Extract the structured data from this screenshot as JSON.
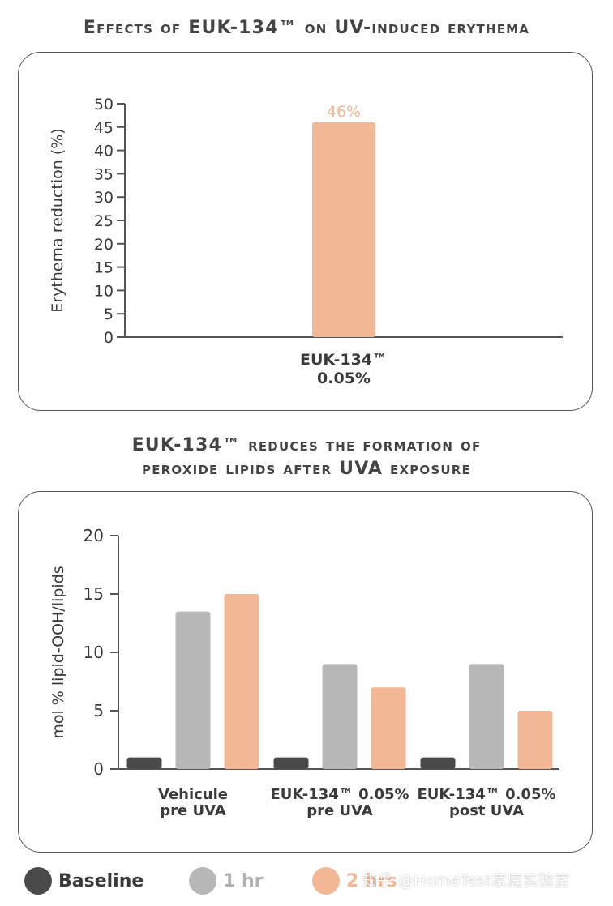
{
  "chart_data": [
    {
      "type": "bar",
      "title": "Effects of EUK-134™ on UV-induced erythema",
      "ylabel": "Erythema reduction (%)",
      "xlabel": "",
      "ylim": [
        0,
        50
      ],
      "yticks": [
        0,
        5,
        10,
        15,
        20,
        25,
        30,
        35,
        40,
        45,
        50
      ],
      "categories": [
        "EUK-134™\n0.05%"
      ],
      "category_lines": [
        [
          "EUK-134™",
          "0.05%"
        ]
      ],
      "series": [
        {
          "name": "2 hrs",
          "values": [
            46
          ]
        }
      ],
      "data_labels": [
        "46%"
      ],
      "grid": false,
      "color": "#F2B896"
    },
    {
      "type": "bar",
      "title": "EUK-134™ reduces the formation of peroxide lipids after UVA exposure",
      "title_lines": [
        "EUK-134™ reduces the formation of",
        "peroxide lipids after UVA exposure"
      ],
      "ylabel": "mol % lipid-OOH/lipids",
      "xlabel": "",
      "ylim": [
        0,
        20
      ],
      "yticks": [
        0,
        5,
        10,
        15,
        20
      ],
      "categories": [
        "Vehicule pre UVA",
        "EUK-134™ 0.05% pre UVA",
        "EUK-134™ 0.05% post UVA"
      ],
      "category_lines": [
        [
          "Vehicule",
          "pre UVA"
        ],
        [
          "EUK-134™ 0.05%",
          "pre UVA"
        ],
        [
          "EUK-134™ 0.05%",
          "post UVA"
        ]
      ],
      "series": [
        {
          "name": "Baseline",
          "values": [
            1,
            1,
            1
          ]
        },
        {
          "name": "1 hr",
          "values": [
            13.5,
            9,
            9
          ]
        },
        {
          "name": "2 hrs",
          "values": [
            15,
            7,
            5
          ]
        }
      ],
      "grid": false,
      "legend": "bottom"
    }
  ],
  "legend": [
    {
      "label": "Baseline",
      "color": "#4a4a4a",
      "text_color": "#3a3a3a"
    },
    {
      "label": "1 hr",
      "color": "#b7b7b7",
      "text_color": "#b0b0b0"
    },
    {
      "label": "2 hrs",
      "color": "#F2B896",
      "text_color": "#F2B896"
    }
  ],
  "series_colors": [
    "#4a4a4a",
    "#b7b7b7",
    "#F2B896"
  ],
  "watermark": "知乎 @HomeTest家庭实验室"
}
